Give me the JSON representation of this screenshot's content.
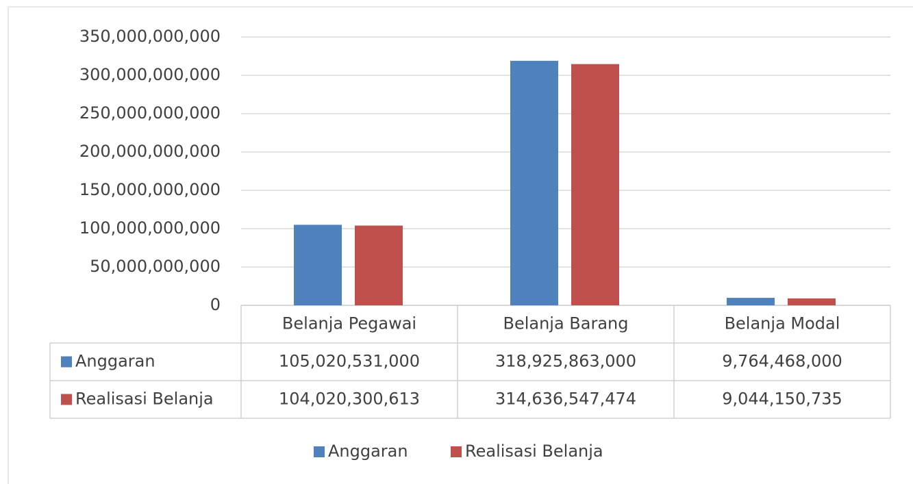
{
  "chart_data": {
    "type": "bar",
    "categories": [
      "Belanja Pegawai",
      "Belanja Barang",
      "Belanja Modal"
    ],
    "series": [
      {
        "name": "Anggaran",
        "color": "#4f81bd",
        "values": [
          105020531000,
          318925863000,
          9764468000
        ],
        "value_labels": [
          "105,020,531,000",
          "318,925,863,000",
          "9,764,468,000"
        ]
      },
      {
        "name": "Realisasi Belanja",
        "color": "#c0504d",
        "values": [
          104020300613,
          314636547474,
          9044150735
        ],
        "value_labels": [
          "104,020,300,613",
          "314,636,547,474",
          "9,044,150,735"
        ]
      }
    ],
    "ylim": [
      0,
      350000000000
    ],
    "yticks": [
      0,
      {
        "value": 50000000000,
        "label": "50,000,000,000"
      },
      {
        "value": 100000000000,
        "label": "100,000,000,000"
      },
      {
        "value": 150000000000,
        "label": "150,000,000,000"
      },
      {
        "value": 200000000000,
        "label": "200,000,000,000"
      },
      {
        "value": 250000000000,
        "label": "250,000,000,000"
      },
      {
        "value": 300000000000,
        "label": "300,000,000,000"
      },
      {
        "value": 350000000000,
        "label": "350,000,000,000"
      }
    ],
    "grid": true,
    "legend": "bottom"
  }
}
